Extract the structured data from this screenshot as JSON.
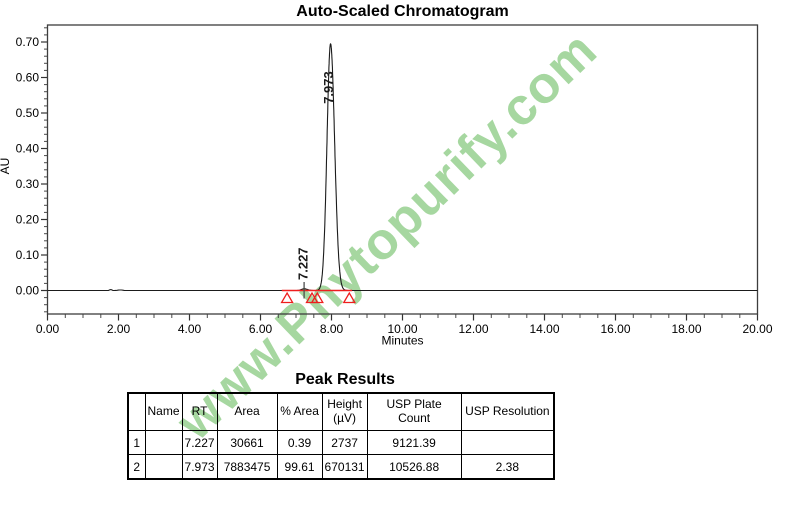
{
  "watermark": {
    "text": "www.Phytopurify.com",
    "color": "#a6d7a0"
  },
  "chart_data": {
    "type": "line",
    "title": "Auto-Scaled Chromatogram",
    "xlabel": "Minutes",
    "ylabel": "AU",
    "xlim": [
      0,
      20
    ],
    "ylim": [
      -0.066,
      0.746
    ],
    "x_tick_labels": [
      "0.00",
      "2.00",
      "4.00",
      "6.00",
      "8.00",
      "10.00",
      "12.00",
      "14.00",
      "16.00",
      "18.00",
      "20.00"
    ],
    "y_tick_labels": [
      "0.00",
      "0.10",
      "0.20",
      "0.30",
      "0.40",
      "0.50",
      "0.60",
      "0.70"
    ],
    "x_minor_step": 0.5,
    "y_minor_step": 0.02,
    "grid": false,
    "legend": false,
    "trace_color": "#1b1b1b",
    "axis_color": "#3d3d3d",
    "series": [
      {
        "name": "signal",
        "baseline_au": 0,
        "peaks": [
          {
            "rt": 7.227,
            "label": "7.227",
            "height_au": 0.005,
            "sigma_left": 0.07,
            "sigma_right": 0.09
          },
          {
            "rt": 7.973,
            "label": "7.973",
            "height_au": 0.695,
            "sigma_left": 0.1,
            "sigma_right": 0.115
          }
        ],
        "noise": [
          {
            "t": 1.78,
            "h": 0.003,
            "s": 0.025
          },
          {
            "t": 2.05,
            "h": 0.0015,
            "s": 0.06
          }
        ]
      }
    ],
    "integration": {
      "color": "#ee1e1e",
      "baseline_t": [
        6.6,
        8.58
      ],
      "marker_t": [
        6.75,
        7.45,
        7.6,
        8.5
      ]
    }
  },
  "table": {
    "title": "Peak Results",
    "headers": [
      "",
      "Name",
      "RT",
      "Area",
      "% Area",
      "Height\n(µV)",
      "USP Plate Count",
      "USP Resolution"
    ],
    "rows": [
      [
        "1",
        "",
        "7.227",
        "30661",
        "0.39",
        "2737",
        "9121.39",
        ""
      ],
      [
        "2",
        "",
        "7.973",
        "7883475",
        "99.61",
        "670131",
        "10526.88",
        "2.38"
      ]
    ]
  }
}
